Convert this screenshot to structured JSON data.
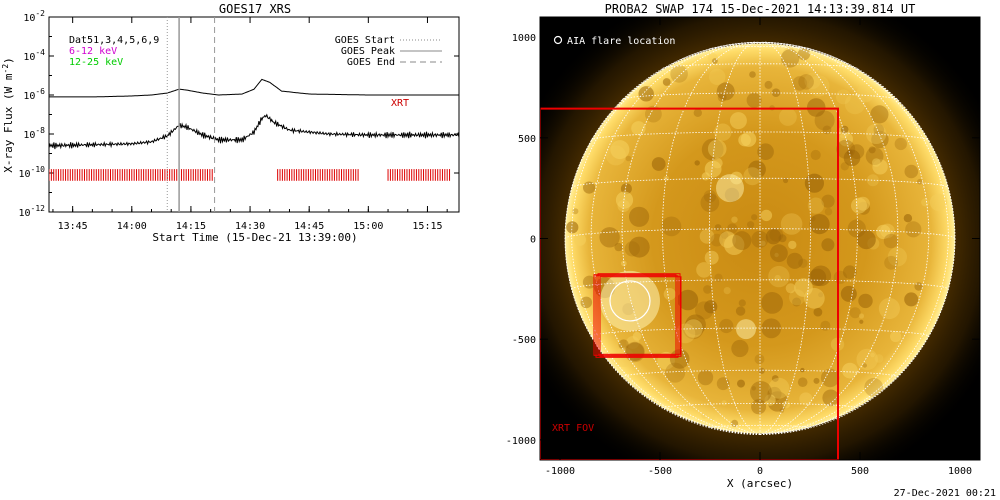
{
  "chart_data": [
    {
      "type": "line",
      "title": "GOES17 XRS",
      "xlabel": "Start Time (15-Dec-21 13:39:00)",
      "ylabel": "X-ray Flux (W m^-2)",
      "y_scale": "log",
      "ylim_exp": [
        -12,
        -2
      ],
      "xlim": [
        "13:39",
        "15:23"
      ],
      "x_ticks": [
        "13:45",
        "14:00",
        "14:15",
        "14:30",
        "14:45",
        "15:00",
        "15:15"
      ],
      "y_ticks": [
        "10^-2",
        "10^-4",
        "10^-6",
        "10^-8",
        "10^-10",
        "10^-12"
      ],
      "legend_left": [
        {
          "label": "Dat51,3,4,5,6,9",
          "color": "#000000"
        },
        {
          "label": "6-12 keV",
          "color": "#d000d0"
        },
        {
          "label": "12-25 keV",
          "color": "#00cc00"
        }
      ],
      "legend_right": [
        {
          "label": "GOES Start",
          "style": "dotted"
        },
        {
          "label": "GOES Peak",
          "style": "solid"
        },
        {
          "label": "GOES End",
          "style": "dashed"
        }
      ],
      "event_times": {
        "goes_start": "14:09",
        "goes_peak": "14:12",
        "goes_end": "14:21"
      },
      "annotation": {
        "text": "XRT",
        "color": "#cc0000",
        "position": "right"
      },
      "series": [
        {
          "color": "#000000",
          "x": [
            "13:39",
            "13:50",
            "14:00",
            "14:05",
            "14:09",
            "14:12",
            "14:14",
            "14:18",
            "14:22",
            "14:28",
            "14:31",
            "14:33",
            "14:35",
            "14:38",
            "14:45",
            "15:00",
            "15:23"
          ],
          "log_values": [
            -6.1,
            -6.1,
            -6.05,
            -6.0,
            -5.9,
            -5.7,
            -5.75,
            -5.9,
            -6.0,
            -5.95,
            -5.7,
            -5.2,
            -5.35,
            -5.8,
            -5.95,
            -6.0,
            -6.0
          ]
        },
        {
          "color": "#000000",
          "x": [
            "13:39",
            "13:50",
            "14:00",
            "14:05",
            "14:09",
            "14:12",
            "14:14",
            "14:18",
            "14:22",
            "14:28",
            "14:31",
            "14:33",
            "14:34",
            "14:36",
            "14:40",
            "14:50",
            "15:00",
            "15:23"
          ],
          "log_values": [
            -8.6,
            -8.55,
            -8.5,
            -8.4,
            -8.1,
            -7.55,
            -7.65,
            -8.05,
            -8.3,
            -8.3,
            -7.9,
            -7.2,
            -7.05,
            -7.4,
            -7.8,
            -8.0,
            -8.05,
            -8.05
          ]
        }
      ],
      "coverage_segments": [
        [
          "13:39",
          "14:21"
        ],
        [
          "14:37",
          "14:58"
        ],
        [
          "15:05",
          "15:21"
        ]
      ]
    },
    {
      "type": "heatmap",
      "title": "PROBA2 SWAP 174 15-Dec-2021 14:13:39.814 UT",
      "xlabel": "X (arcsec)",
      "ylabel": "",
      "xlim": [
        -1100,
        1100
      ],
      "ylim": [
        -1100,
        1100
      ],
      "x_ticks": [
        "-1000",
        "-500",
        "0",
        "500",
        "1000"
      ],
      "y_ticks": [
        "1000",
        "500",
        "0",
        "-500",
        "-1000"
      ],
      "legend": "O AIA flare location",
      "annotation": "XRT FOV",
      "footer": "27-Dec-2021 00:21",
      "solar_radius_arcsec": 975,
      "flare_location": {
        "x": -650,
        "y": -310,
        "r": 100
      },
      "xrt_fov": {
        "x0": -1100,
        "x1": 390,
        "y0": -1100,
        "y1": 645
      },
      "xrt_boxes": [
        {
          "x0": -830,
          "x1": -420,
          "y0": -580,
          "y1": -180
        },
        {
          "x0": -820,
          "x1": -410,
          "y0": -590,
          "y1": -185
        },
        {
          "x0": -810,
          "x1": -400,
          "y0": -575,
          "y1": -175
        },
        {
          "x0": -800,
          "x1": -395,
          "y0": -585,
          "y1": -190
        }
      ]
    }
  ]
}
